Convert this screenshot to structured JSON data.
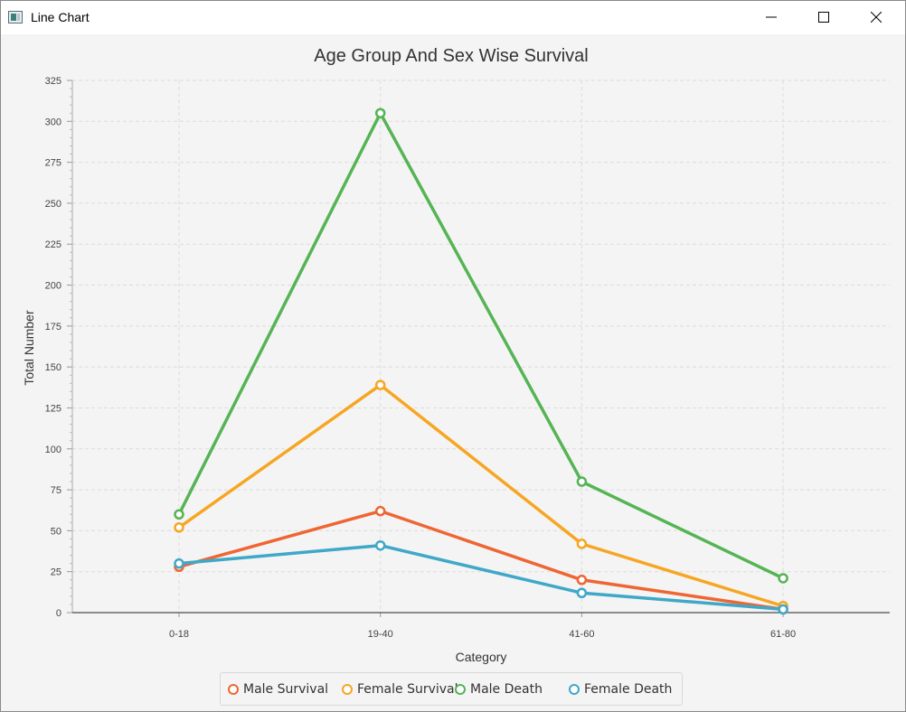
{
  "window": {
    "title": "Line Chart",
    "icon": "app-window-icon",
    "controls": [
      "minimize-icon",
      "maximize-icon",
      "close-icon"
    ]
  },
  "chart_data": {
    "type": "line",
    "title": "Age Group And Sex Wise Survival",
    "xlabel": "Category",
    "ylabel": "Total Number",
    "categories": [
      "0-18",
      "19-40",
      "41-60",
      "61-80"
    ],
    "ylim": [
      0,
      325
    ],
    "yticks": [
      "0",
      "25",
      "50",
      "75",
      "100",
      "125",
      "150",
      "175",
      "200",
      "225",
      "250",
      "275",
      "300",
      "325"
    ],
    "grid": true,
    "legend_position": "bottom",
    "series": [
      {
        "name": "Male Survival",
        "color": "#ee6633",
        "values": [
          28,
          62,
          20,
          2
        ]
      },
      {
        "name": "Female Survival",
        "color": "#f6a623",
        "values": [
          52,
          139,
          42,
          4
        ]
      },
      {
        "name": "Male Death",
        "color": "#55b454",
        "values": [
          60,
          305,
          80,
          21
        ]
      },
      {
        "name": "Female Death",
        "color": "#3fa8c8",
        "values": [
          30,
          41,
          12,
          2
        ]
      }
    ]
  }
}
